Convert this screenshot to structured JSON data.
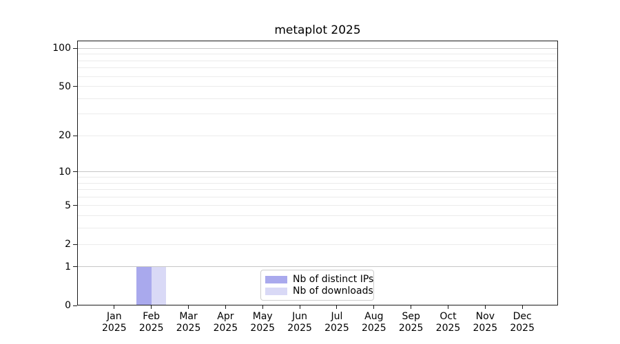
{
  "chart_data": {
    "type": "bar",
    "title": "metaplot 2025",
    "categories": [
      {
        "month": "Jan",
        "year": "2025"
      },
      {
        "month": "Feb",
        "year": "2025"
      },
      {
        "month": "Mar",
        "year": "2025"
      },
      {
        "month": "Apr",
        "year": "2025"
      },
      {
        "month": "May",
        "year": "2025"
      },
      {
        "month": "Jun",
        "year": "2025"
      },
      {
        "month": "Jul",
        "year": "2025"
      },
      {
        "month": "Aug",
        "year": "2025"
      },
      {
        "month": "Sep",
        "year": "2025"
      },
      {
        "month": "Oct",
        "year": "2025"
      },
      {
        "month": "Nov",
        "year": "2025"
      },
      {
        "month": "Dec",
        "year": "2025"
      }
    ],
    "series": [
      {
        "name": "Nb of distinct IPs",
        "color": "#a9a9ed",
        "values": [
          0,
          1,
          0,
          0,
          0,
          0,
          0,
          0,
          0,
          0,
          0,
          0
        ]
      },
      {
        "name": "Nb of downloads",
        "color": "#d9d9f6",
        "values": [
          0,
          1,
          0,
          0,
          0,
          0,
          0,
          0,
          0,
          0,
          0,
          0
        ]
      }
    ],
    "yscale": "log1p",
    "ylim": [
      0,
      115
    ],
    "y_ticks": [
      0,
      1,
      2,
      5,
      10,
      20,
      50,
      100
    ],
    "y_major_gridlines": [
      1,
      10,
      100
    ],
    "y_minor_gridlines": [
      2,
      3,
      4,
      5,
      6,
      7,
      8,
      9,
      20,
      30,
      40,
      50,
      60,
      70,
      80,
      90
    ],
    "grid": true,
    "legend_position": "lower center",
    "colors": {
      "major_grid": "#c6c6c6",
      "minor_grid": "#ebebeb",
      "spine": "#1a1a1a",
      "text": "#000000",
      "legend_border": "#cccccc"
    }
  }
}
